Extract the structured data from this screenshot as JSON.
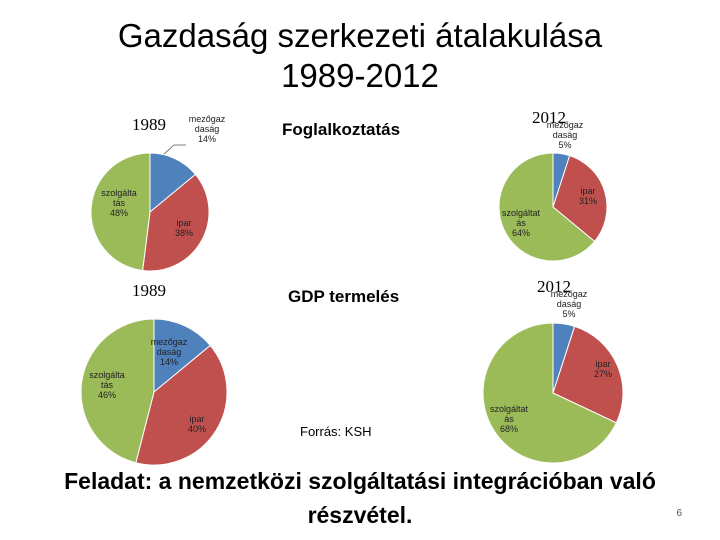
{
  "slide": {
    "title_line1": "Gazdaság szerkezeti átalakulása",
    "title_line2": "1989-2012",
    "section_employment": "Foglalkoztatás",
    "section_gdp": "GDP termelés",
    "source": "Forrás: KSH",
    "task_line1": "Feladat: a nemzetközi szolgáltatási integrációban való",
    "task_line2": "részvétel.",
    "page_number": "6"
  },
  "colors": {
    "mezogazdasag": "#4F81BD",
    "ipar": "#C0504D",
    "szolgaltatas": "#9BBB59"
  },
  "chart_data": [
    {
      "type": "pie",
      "title": "1989",
      "section": "Foglalkoztatás",
      "slices": [
        {
          "name": "mezőgazdaság",
          "value": 14,
          "label": [
            "mezőgaz",
            "daság",
            "14%"
          ]
        },
        {
          "name": "ipar",
          "value": 38,
          "label": [
            "ipar",
            "38%"
          ]
        },
        {
          "name": "szolgáltatás",
          "value": 48,
          "label": [
            "szolgálta",
            "tás",
            "48%"
          ]
        }
      ]
    },
    {
      "type": "pie",
      "title": "2012",
      "section": "Foglalkoztatás",
      "slices": [
        {
          "name": "mezőgazdaság",
          "value": 5,
          "label": [
            "mezőgaz",
            "daság",
            "5%"
          ]
        },
        {
          "name": "ipar",
          "value": 31,
          "label": [
            "ipar",
            "31%"
          ]
        },
        {
          "name": "szolgáltatás",
          "value": 64,
          "label": [
            "szolgáltat",
            "ás",
            "64%"
          ]
        }
      ]
    },
    {
      "type": "pie",
      "title": "1989",
      "section": "GDP termelés",
      "slices": [
        {
          "name": "mezőgazdaság",
          "value": 14,
          "label": [
            "mezőgaz",
            "daság",
            "14%"
          ]
        },
        {
          "name": "ipar",
          "value": 40,
          "label": [
            "ipar",
            "40%"
          ]
        },
        {
          "name": "szolgáltatás",
          "value": 46,
          "label": [
            "szolgálta",
            "tás",
            "46%"
          ]
        }
      ]
    },
    {
      "type": "pie",
      "title": "2012",
      "section": "GDP termelés",
      "slices": [
        {
          "name": "mezőgazdaság",
          "value": 5,
          "label": [
            "mezőgaz",
            "daság",
            "5%"
          ]
        },
        {
          "name": "ipar",
          "value": 27,
          "label": [
            "ipar",
            "27%"
          ]
        },
        {
          "name": "szolgáltatás",
          "value": 68,
          "label": [
            "szolgáltat",
            "ás",
            "68%"
          ]
        }
      ]
    }
  ]
}
